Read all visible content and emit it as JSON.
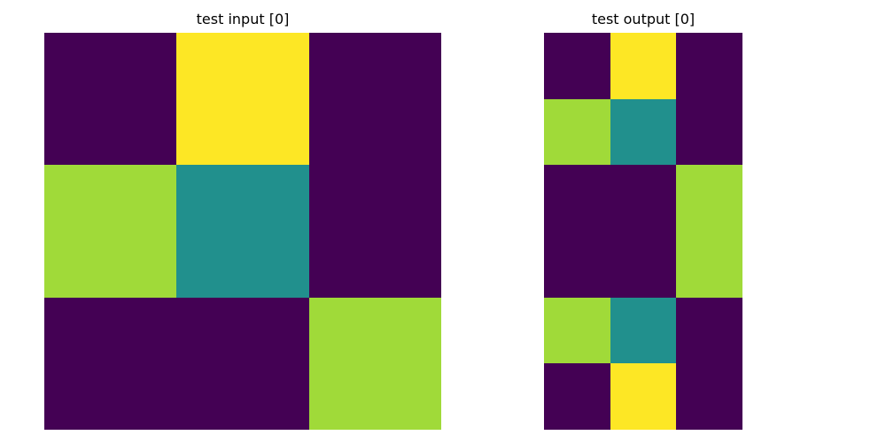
{
  "palette": {
    "0": "#440154",
    "3": "#21908d",
    "4": "#fde725",
    "8": "#a0da39"
  },
  "panels": {
    "input": {
      "title": "test input [0]",
      "grid": [
        [
          0,
          4,
          0
        ],
        [
          8,
          3,
          0
        ],
        [
          0,
          0,
          8
        ]
      ]
    },
    "output": {
      "title": "test output [0]",
      "grid": [
        [
          0,
          4,
          0
        ],
        [
          8,
          3,
          0
        ],
        [
          0,
          0,
          8
        ],
        [
          0,
          0,
          8
        ],
        [
          8,
          3,
          0
        ],
        [
          0,
          4,
          0
        ]
      ]
    }
  }
}
